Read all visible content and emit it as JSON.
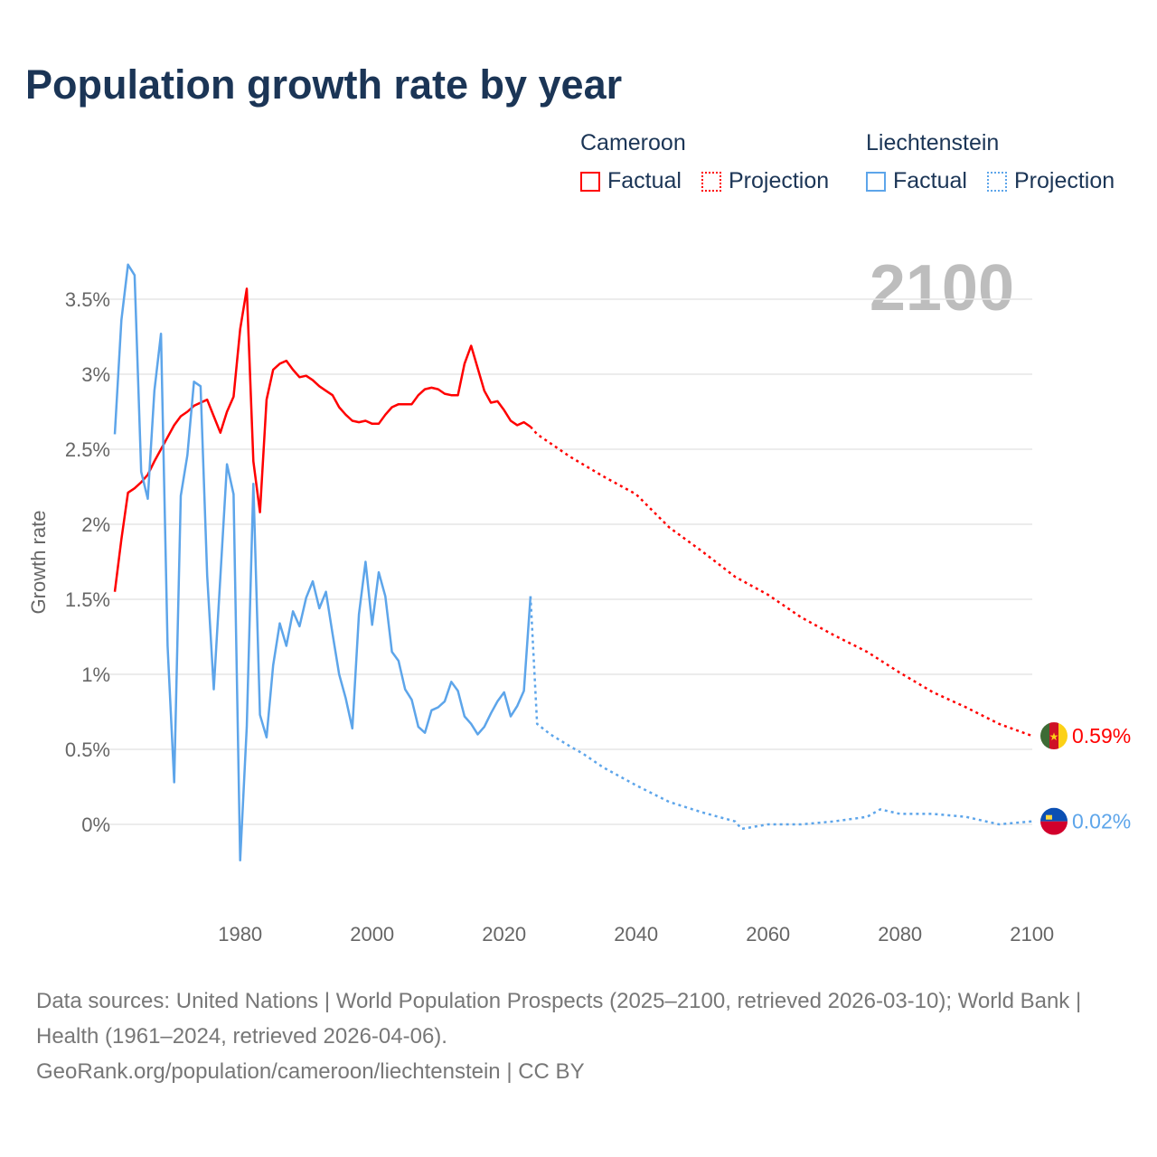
{
  "title": "Population growth rate by year",
  "current_year": "2100",
  "legend": {
    "groups": [
      {
        "name": "Cameroon",
        "factual": "Factual",
        "projection": "Projection",
        "color": "#ff0000"
      },
      {
        "name": "Liechtenstein",
        "factual": "Factual",
        "projection": "Projection",
        "color": "#5da5ea"
      }
    ]
  },
  "chart_data": {
    "type": "line",
    "title": "Population growth rate by year",
    "xlabel": "",
    "ylabel": "Growth rate",
    "xlim": [
      1961,
      2100
    ],
    "ylim": [
      -0.4,
      3.85
    ],
    "x_ticks": [
      1980,
      2000,
      2020,
      2040,
      2060,
      2080,
      2100
    ],
    "x_tick_labels": [
      "1980",
      "2000",
      "2020",
      "2040",
      "2060",
      "2080",
      "2100"
    ],
    "y_ticks": [
      0,
      0.5,
      1,
      1.5,
      2,
      2.5,
      3,
      3.5
    ],
    "y_tick_labels": [
      "0%",
      "0.5%",
      "1%",
      "1.5%",
      "2%",
      "2.5%",
      "3%",
      "3.5%"
    ],
    "grid": true,
    "legend_position": "top-right",
    "series": [
      {
        "name": "Cameroon",
        "color": "#ff0000",
        "end_label": "0.59%",
        "factual": {
          "x": [
            1961,
            1962,
            1963,
            1964,
            1965,
            1966,
            1967,
            1968,
            1969,
            1970,
            1971,
            1972,
            1973,
            1974,
            1975,
            1976,
            1977,
            1978,
            1979,
            1980,
            1981,
            1982,
            1983,
            1984,
            1985,
            1986,
            1987,
            1988,
            1989,
            1990,
            1991,
            1992,
            1993,
            1994,
            1995,
            1996,
            1997,
            1998,
            1999,
            2000,
            2001,
            2002,
            2003,
            2004,
            2005,
            2006,
            2007,
            2008,
            2009,
            2010,
            2011,
            2012,
            2013,
            2014,
            2015,
            2016,
            2017,
            2018,
            2019,
            2020,
            2021,
            2022,
            2023,
            2024
          ],
          "y": [
            1.55,
            1.9,
            2.21,
            2.24,
            2.28,
            2.33,
            2.42,
            2.5,
            2.58,
            2.66,
            2.72,
            2.75,
            2.79,
            2.81,
            2.83,
            2.72,
            2.61,
            2.75,
            2.85,
            3.3,
            3.57,
            2.42,
            2.08,
            2.83,
            3.03,
            3.07,
            3.09,
            3.03,
            2.98,
            2.99,
            2.96,
            2.92,
            2.89,
            2.86,
            2.78,
            2.73,
            2.69,
            2.68,
            2.69,
            2.67,
            2.67,
            2.73,
            2.78,
            2.8,
            2.8,
            2.8,
            2.86,
            2.9,
            2.91,
            2.9,
            2.87,
            2.86,
            2.86,
            3.07,
            3.19,
            3.04,
            2.89,
            2.81,
            2.82,
            2.76,
            2.69,
            2.66,
            2.68,
            2.65
          ]
        },
        "projection": {
          "x": [
            2025,
            2030,
            2035,
            2040,
            2045,
            2050,
            2055,
            2060,
            2065,
            2070,
            2075,
            2080,
            2085,
            2090,
            2095,
            2100
          ],
          "y": [
            2.6,
            2.45,
            2.32,
            2.2,
            1.98,
            1.82,
            1.65,
            1.53,
            1.38,
            1.26,
            1.15,
            1.01,
            0.88,
            0.78,
            0.67,
            0.59
          ]
        }
      },
      {
        "name": "Liechtenstein",
        "color": "#5da5ea",
        "end_label": "0.02%",
        "factual": {
          "x": [
            1961,
            1962,
            1963,
            1964,
            1965,
            1966,
            1967,
            1968,
            1969,
            1970,
            1971,
            1972,
            1973,
            1974,
            1975,
            1976,
            1977,
            1978,
            1979,
            1980,
            1981,
            1982,
            1983,
            1984,
            1985,
            1986,
            1987,
            1988,
            1989,
            1990,
            1991,
            1992,
            1993,
            1994,
            1995,
            1996,
            1997,
            1998,
            1999,
            2000,
            2001,
            2002,
            2003,
            2004,
            2005,
            2006,
            2007,
            2008,
            2009,
            2010,
            2011,
            2012,
            2013,
            2014,
            2015,
            2016,
            2017,
            2018,
            2019,
            2020,
            2021,
            2022,
            2023,
            2024
          ],
          "y": [
            2.6,
            3.36,
            3.73,
            3.66,
            2.35,
            2.17,
            2.89,
            3.27,
            1.19,
            0.28,
            2.19,
            2.46,
            2.95,
            2.92,
            1.66,
            0.9,
            1.65,
            2.4,
            2.2,
            -0.24,
            0.65,
            2.27,
            0.73,
            0.58,
            1.06,
            1.34,
            1.19,
            1.42,
            1.32,
            1.51,
            1.62,
            1.44,
            1.55,
            1.27,
            1.0,
            0.84,
            0.64,
            1.4,
            1.75,
            1.33,
            1.68,
            1.52,
            1.15,
            1.09,
            0.9,
            0.83,
            0.65,
            0.61,
            0.76,
            0.78,
            0.82,
            0.95,
            0.89,
            0.72,
            0.67,
            0.6,
            0.65,
            0.74,
            0.82,
            0.88,
            0.72,
            0.79,
            0.89,
            1.52
          ]
        },
        "projection": {
          "x": [
            2025,
            2027,
            2030,
            2032,
            2035,
            2040,
            2045,
            2050,
            2055,
            2056,
            2060,
            2065,
            2070,
            2075,
            2077,
            2080,
            2085,
            2090,
            2095,
            2100
          ],
          "y": [
            0.67,
            0.6,
            0.52,
            0.47,
            0.38,
            0.26,
            0.15,
            0.08,
            0.02,
            -0.03,
            0.0,
            0.0,
            0.02,
            0.05,
            0.1,
            0.07,
            0.07,
            0.05,
            0.0,
            0.02
          ]
        }
      }
    ]
  },
  "footer": {
    "sources": "Data sources: United Nations | World Population Prospects (2025–2100, retrieved 2026-03-10); World Bank | Health (1961–2024, retrieved 2026-04-06).",
    "link": "GeoRank.org/population/cameroon/liechtenstein | CC BY"
  }
}
